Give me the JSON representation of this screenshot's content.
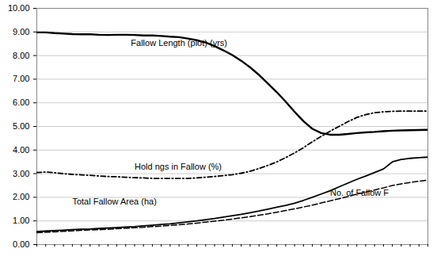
{
  "chart_data": {
    "type": "line",
    "x": [
      0,
      1,
      2,
      3,
      4,
      5,
      6,
      7,
      8,
      9,
      10,
      11,
      12,
      13,
      14,
      15,
      16,
      17,
      18,
      19,
      20,
      21,
      22,
      23,
      24,
      25,
      26,
      27,
      28,
      29,
      30,
      31,
      32,
      33,
      34,
      35,
      36,
      37,
      38,
      39,
      40,
      41,
      42,
      43,
      44
    ],
    "series": [
      {
        "color": "#000000",
        "line_style": "solid",
        "values": [
          8.98,
          8.98,
          8.95,
          8.93,
          8.91,
          8.9,
          8.9,
          8.88,
          8.87,
          8.88,
          8.88,
          8.87,
          8.85,
          8.85,
          8.83,
          8.8,
          8.78,
          8.72,
          8.65,
          8.55,
          8.4,
          8.22,
          8.02,
          7.78,
          7.5,
          7.18,
          6.82,
          6.45,
          6.05,
          5.62,
          5.22,
          4.9,
          4.72,
          4.65,
          4.65,
          4.68,
          4.72,
          4.75,
          4.77,
          4.8,
          4.82,
          4.83,
          4.84,
          4.85,
          4.86
        ]
      },
      {
        "color": "#000000",
        "line_style": "dashdot",
        "values": [
          3.05,
          3.07,
          3.04,
          3.0,
          2.97,
          2.95,
          2.93,
          2.9,
          2.88,
          2.87,
          2.85,
          2.83,
          2.82,
          2.8,
          2.8,
          2.8,
          2.8,
          2.8,
          2.82,
          2.85,
          2.88,
          2.92,
          2.96,
          3.02,
          3.1,
          3.22,
          3.35,
          3.5,
          3.68,
          3.88,
          4.1,
          4.35,
          4.58,
          4.8,
          5.0,
          5.2,
          5.38,
          5.5,
          5.58,
          5.62,
          5.64,
          5.65,
          5.65,
          5.65,
          5.65
        ]
      },
      {
        "color": "#000000",
        "line_style": "solid",
        "values": [
          0.55,
          0.57,
          0.59,
          0.61,
          0.63,
          0.65,
          0.66,
          0.68,
          0.7,
          0.72,
          0.74,
          0.76,
          0.79,
          0.82,
          0.85,
          0.88,
          0.92,
          0.96,
          1.0,
          1.05,
          1.1,
          1.16,
          1.22,
          1.28,
          1.35,
          1.42,
          1.5,
          1.58,
          1.66,
          1.75,
          1.87,
          2.0,
          2.14,
          2.28,
          2.44,
          2.6,
          2.76,
          2.9,
          3.05,
          3.2,
          3.5,
          3.6,
          3.65,
          3.68,
          3.7
        ]
      },
      {
        "color": "#000000",
        "line_style": "dashed",
        "values": [
          0.5,
          0.52,
          0.54,
          0.56,
          0.58,
          0.6,
          0.62,
          0.63,
          0.65,
          0.67,
          0.69,
          0.71,
          0.73,
          0.76,
          0.78,
          0.81,
          0.84,
          0.87,
          0.91,
          0.95,
          0.99,
          1.03,
          1.08,
          1.13,
          1.18,
          1.24,
          1.3,
          1.37,
          1.44,
          1.51,
          1.59,
          1.67,
          1.76,
          1.85,
          1.94,
          2.03,
          2.13,
          2.22,
          2.31,
          2.4,
          2.5,
          2.57,
          2.63,
          2.68,
          2.73
        ]
      }
    ],
    "annotations": [
      {
        "text": "Fallow Length (plot) (yrs)",
        "x": 16,
        "y": 8.42
      },
      {
        "text": "Hold ngs in Fallow (%)",
        "x": 11,
        "y": 3.18
      },
      {
        "text": "Total Fallow Area (ha)",
        "x": 4,
        "y": 1.68
      },
      {
        "text": "No. of Fallow F",
        "x": 33,
        "y": 2.05
      }
    ],
    "xlim": [
      0,
      44
    ],
    "xticks": [
      0,
      1,
      2,
      3,
      4,
      5,
      6,
      7,
      8,
      9,
      10,
      11,
      12,
      13,
      14,
      15,
      16,
      17,
      18,
      19,
      20,
      21,
      22,
      23,
      24,
      25,
      26,
      27,
      28,
      29,
      30,
      31,
      32,
      33,
      34,
      35,
      36,
      37,
      38,
      39,
      40,
      41,
      42,
      43,
      44
    ],
    "ylim": [
      0.0,
      10.0
    ],
    "yticks": [
      {
        "value": 0.0,
        "label": "0.00"
      },
      {
        "value": 1.0,
        "label": "1.00"
      },
      {
        "value": 2.0,
        "label": "2.00"
      },
      {
        "value": 3.0,
        "label": "3.00"
      },
      {
        "value": 4.0,
        "label": "4.00"
      },
      {
        "value": 5.0,
        "label": "5.00"
      },
      {
        "value": 6.0,
        "label": "6.00"
      },
      {
        "value": 7.0,
        "label": "7.00"
      },
      {
        "value": 8.0,
        "label": "8.00"
      },
      {
        "value": 9.0,
        "label": "9.00"
      },
      {
        "value": 10.0,
        "label": "10.00"
      }
    ],
    "grid": true,
    "tick_labels": "y"
  }
}
